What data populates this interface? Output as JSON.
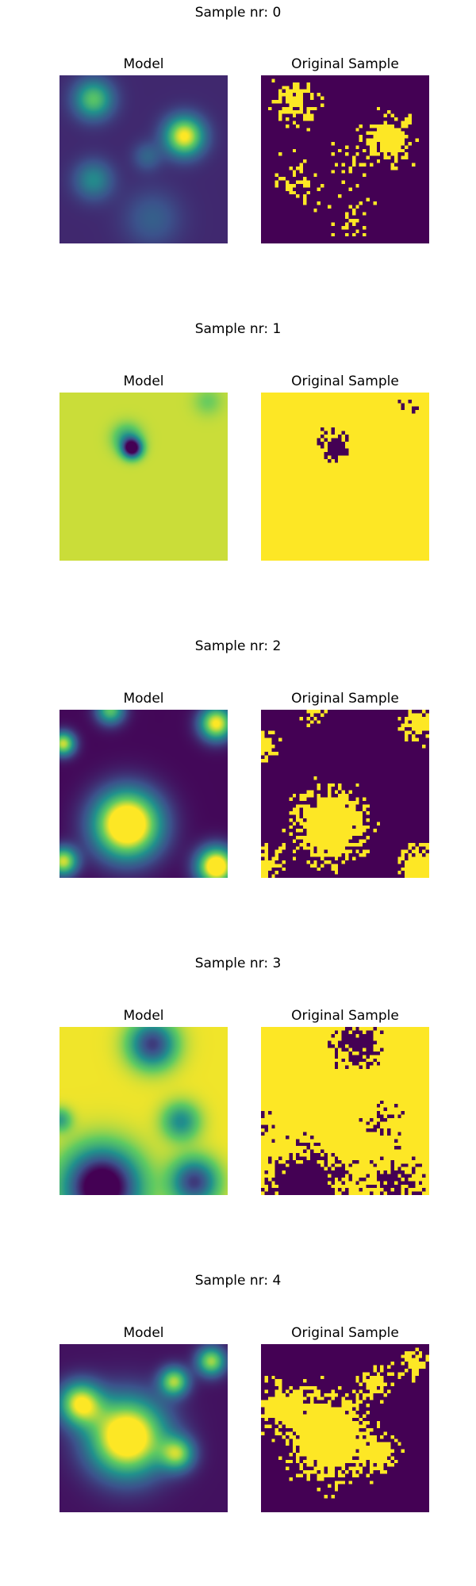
{
  "colors": {
    "viridis_low": "#440154",
    "viridis_high": "#fde725"
  },
  "samples": [
    {
      "title": "Sample nr: 0",
      "left_title": "Model",
      "right_title": "Original Sample",
      "model_pattern": "sample-0-model",
      "original_pattern": "sample-0-original"
    },
    {
      "title": "Sample nr: 1",
      "left_title": "Model",
      "right_title": "Original Sample",
      "model_pattern": "sample-1-model",
      "original_pattern": "sample-1-original"
    },
    {
      "title": "Sample nr: 2",
      "left_title": "Model",
      "right_title": "Original Sample",
      "model_pattern": "sample-2-model",
      "original_pattern": "sample-2-original"
    },
    {
      "title": "Sample nr: 3",
      "left_title": "Model",
      "right_title": "Original Sample",
      "model_pattern": "sample-3-model",
      "original_pattern": "sample-3-original"
    },
    {
      "title": "Sample nr: 4",
      "left_title": "Model",
      "right_title": "Original Sample",
      "model_pattern": "sample-4-model",
      "original_pattern": "sample-4-original"
    }
  ]
}
